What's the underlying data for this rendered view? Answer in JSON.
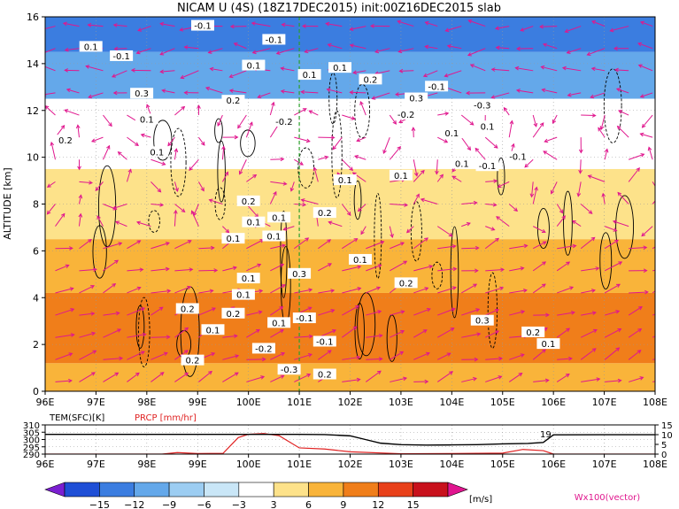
{
  "chart_data": [
    {
      "type": "heatmap",
      "title": "NICAM U (4S) (18Z17DEC2015) init:00Z16DEC2015 slab",
      "xlabel": "",
      "ylabel": "ALTITUDE [km]",
      "xlim": [
        96,
        108
      ],
      "ylim": [
        0,
        16
      ],
      "x_ticks": [
        "96E",
        "97E",
        "98E",
        "99E",
        "100E",
        "101E",
        "102E",
        "103E",
        "104E",
        "105E",
        "106E",
        "107E",
        "108E"
      ],
      "y_ticks": [
        "0",
        "2",
        "4",
        "6",
        "8",
        "10",
        "12",
        "14",
        "16"
      ],
      "grid": true,
      "marker_line_lon": 101.0,
      "colorbar": {
        "levels": [
          -15,
          -12,
          -9,
          -6,
          -3,
          3,
          6,
          9,
          12,
          15
        ],
        "labels": [
          "−15",
          "−12",
          "−9",
          "−6",
          "−3",
          "3",
          "6",
          "9",
          "12",
          "15"
        ],
        "unit": "[m/s]",
        "colors": [
          "#7b1fd1",
          "#1f4fd6",
          "#3b7de0",
          "#64a8ea",
          "#9ccdf2",
          "#c9e6f7",
          "#ffffff",
          "#fde28a",
          "#f9b43a",
          "#f07e1a",
          "#e8401a",
          "#c8111c",
          "#e0158f"
        ]
      },
      "vector_legend": "Wx100(vector)",
      "vector_color": "#e0178e",
      "u_bands": [
        {
          "z": [
            0,
            1.2
          ],
          "u": 8
        },
        {
          "z": [
            1.2,
            4.2
          ],
          "u": 10
        },
        {
          "z": [
            4.2,
            6.5
          ],
          "u": 6
        },
        {
          "z": [
            6.5,
            9.5
          ],
          "u": 4
        },
        {
          "z": [
            9.5,
            12.5
          ],
          "u": -3
        },
        {
          "z": [
            12.5,
            14.5
          ],
          "u": -7
        },
        {
          "z": [
            14.5,
            16
          ],
          "u": -12
        }
      ],
      "contour_labels": [
        "-0.1",
        "0.1",
        "-0.1",
        "0.3",
        "0.2",
        "0.1",
        "0.2",
        "0.1",
        "0.1",
        "-0.1",
        "-0.1",
        "0.1",
        "-0.2",
        "0.3",
        "0.1",
        "0.2",
        "0.1",
        "0.1",
        "-0.2",
        "-0.3",
        "0.1",
        "-0.1",
        "-0.1",
        "0.1",
        "0.1",
        "0.2",
        "0.1",
        "0.1",
        "0.2",
        "0.1",
        "0.3",
        "0.2",
        "0.1",
        "0.2",
        "0.2",
        "0.1",
        "0.1",
        "0.1",
        "0.1",
        "0.1",
        "-0.1",
        "0.2",
        "-0.2",
        "-0.3",
        "0.2",
        "0.3",
        "0.2",
        "0.1",
        "-0.1"
      ]
    },
    {
      "type": "line",
      "title": "",
      "xlim": [
        96,
        108
      ],
      "x_ticks": [
        "96E",
        "97E",
        "98E",
        "99E",
        "100E",
        "101E",
        "102E",
        "103E",
        "104E",
        "105E",
        "106E",
        "107E",
        "108E"
      ],
      "series": [
        {
          "name": "TEM(SFC)[K]",
          "color": "#000000",
          "axis": "left",
          "ylim": [
            290,
            310
          ],
          "y_ticks": [
            "290",
            "295",
            "300",
            "305",
            "310"
          ],
          "x": [
            96,
            97,
            98,
            99,
            100,
            100.5,
            101,
            101.5,
            102,
            102.3,
            102.6,
            103,
            103.5,
            104,
            104.5,
            105,
            105.5,
            105.8,
            106,
            107,
            108
          ],
          "values": [
            303.5,
            303.5,
            303.5,
            303.5,
            303.5,
            303.5,
            303.5,
            303.4,
            302.5,
            300,
            297.5,
            296.5,
            296.2,
            296.3,
            296.5,
            297,
            297.3,
            298,
            303.2,
            303.3,
            303.3
          ]
        },
        {
          "name": "PRCP [mm/hr]",
          "color": "#e02222",
          "axis": "right",
          "ylim": [
            0,
            15
          ],
          "y_ticks": [
            "0",
            "5",
            "10",
            "15"
          ],
          "x": [
            96,
            98.3,
            98.6,
            99,
            99.5,
            99.8,
            100,
            100.3,
            100.6,
            101,
            101.5,
            102,
            103,
            104,
            105,
            105.4,
            105.8,
            106,
            108
          ],
          "values": [
            0,
            0,
            0.8,
            0.3,
            0.4,
            8.5,
            10.2,
            10.6,
            9.5,
            3.2,
            2.6,
            1.2,
            0.2,
            0.3,
            0.5,
            2.4,
            1.8,
            0,
            0
          ]
        }
      ],
      "label_value": "19"
    }
  ],
  "legend_max_label": "15"
}
